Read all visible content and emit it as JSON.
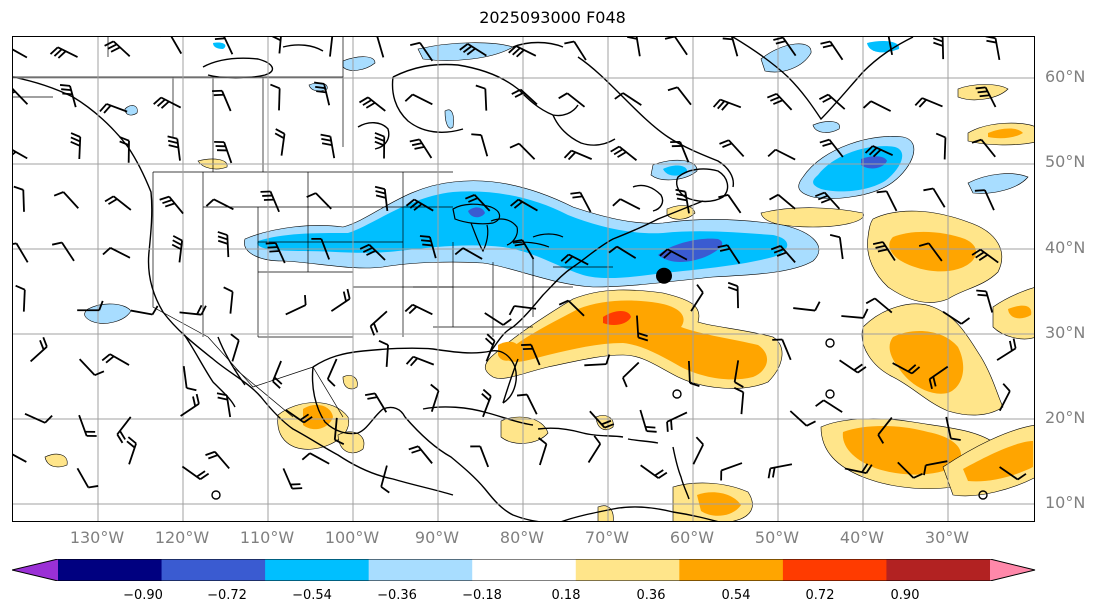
{
  "title": "2025093000 F048",
  "lat_labels": [
    "60°N",
    "50°N",
    "40°N",
    "30°N",
    "20°N",
    "10°N"
  ],
  "lon_labels": [
    "130°W",
    "120°W",
    "110°W",
    "100°W",
    "90°W",
    "80°W",
    "70°W",
    "60°W",
    "50°W",
    "40°W",
    "30°W"
  ],
  "colorbar": {
    "ticks": [
      "−0.90",
      "−0.72",
      "−0.54",
      "−0.36",
      "−0.18",
      "0.18",
      "0.36",
      "0.54",
      "0.72",
      "0.90"
    ],
    "colors": [
      "#9b30d6",
      "#000080",
      "#3a5bd1",
      "#00bfff",
      "#a8ddff",
      "#ffffff",
      "#ffe58a",
      "#ffa500",
      "#ff3b00",
      "#b22222",
      "#ff88aa"
    ]
  },
  "map": {
    "extent": {
      "lon_min": -137,
      "lon_max": -16,
      "lat_min": 7.5,
      "lat_max": 64.5
    },
    "marker": {
      "lon": -60,
      "lat": 36.5,
      "color": "#000000"
    }
  }
}
